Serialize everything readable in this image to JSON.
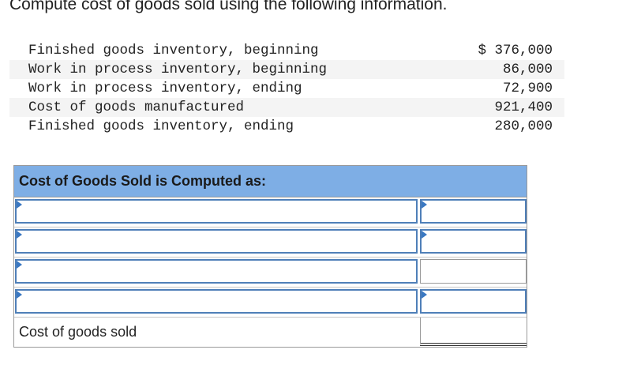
{
  "question": "Compute cost of goods sold using the following information.",
  "info": [
    {
      "label": "Finished goods inventory, beginning",
      "amount": "$ 376,000"
    },
    {
      "label": "Work in process inventory, beginning",
      "amount": "86,000"
    },
    {
      "label": "Work in process inventory, ending",
      "amount": "72,900"
    },
    {
      "label": "Cost of goods manufactured",
      "amount": "921,400"
    },
    {
      "label": "Finished goods inventory, ending",
      "amount": "280,000"
    }
  ],
  "worksheet": {
    "header": "Cost of Goods Sold is Computed as:",
    "total_label": "Cost of goods sold"
  }
}
